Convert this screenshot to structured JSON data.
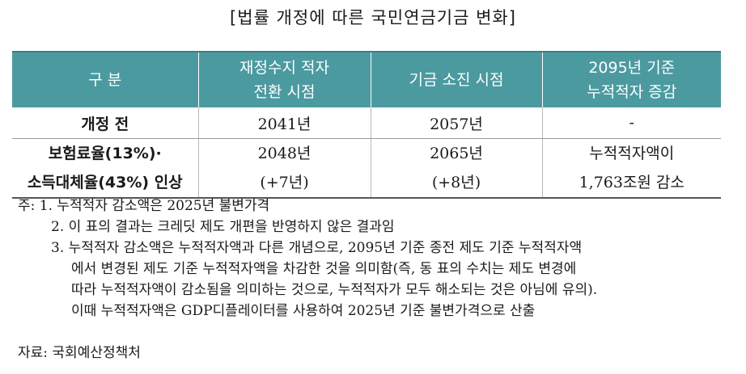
{
  "title": "[법률 개정에 따른 국민연금기금 변화]",
  "table": {
    "headers": {
      "col0": "구 분",
      "col1_line1": "재정수지 적자",
      "col1_line2": "전환 시점",
      "col2": "기금 소진 시점",
      "col3_line1": "2095년 기준",
      "col3_line2": "누적적자 증감"
    },
    "rows": [
      {
        "label": "개정 전",
        "c1": "2041년",
        "c2": "2057년",
        "c3": "-"
      },
      {
        "label_line1": "보험료율(13%)·",
        "label_line2": "소득대체율(43%) 인상",
        "c1_line1": "2048년",
        "c1_line2": "(+7년)",
        "c2_line1": "2065년",
        "c2_line2": "(+8년)",
        "c3_line1": "누적적자액이",
        "c3_line2": "1,763조원 감소"
      }
    ]
  },
  "notes": {
    "prefix": "주: ",
    "n1": "1. 누적적자 감소액은 2025년 불변가격",
    "n2": "2. 이 표의 결과는 크레딧 제도 개편을 반영하지 않은 결과임",
    "n3_l1": "3. 누적적자 감소액은 누적적자액과 다른 개념으로, 2095년 기준 종전 제도 기준 누적적자액",
    "n3_l2": "에서 변경된 제도 기준 누적적자액을 차감한 것을 의미함(즉, 동 표의 수치는 제도 변경에",
    "n3_l3": "따라 누적적자액이 감소됨을 의미하는 것으로, 누적적자가 모두 해소되는 것은 아님에 유의).",
    "n3_l4": "이때 누적적자액은 GDP디플레이터를 사용하여 2025년 기준 불변가격으로 산출"
  },
  "source": "자료: 국회예산정책처"
}
